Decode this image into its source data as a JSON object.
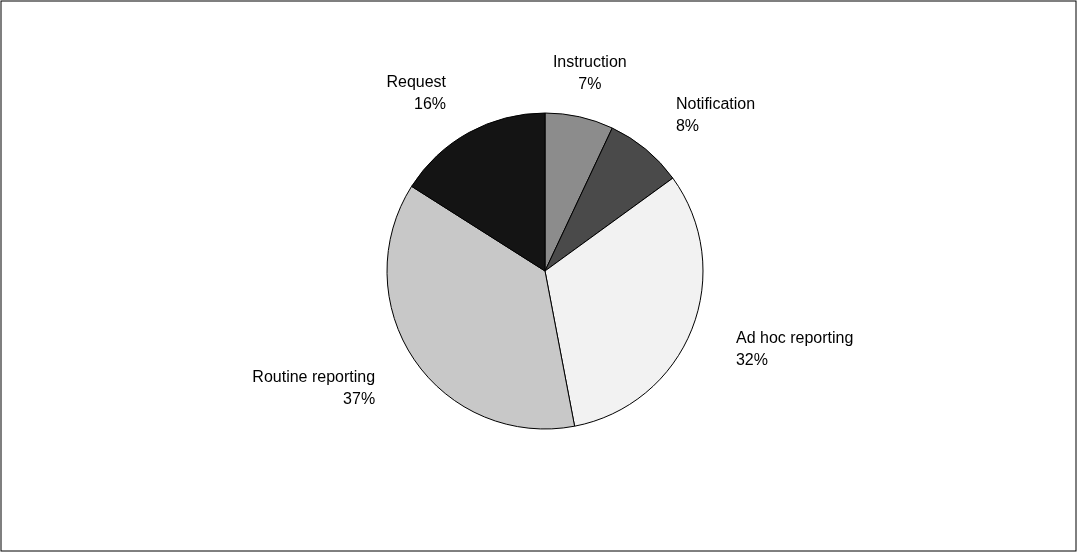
{
  "chart_data": {
    "type": "pie",
    "categories": [
      "Instruction",
      "Notification",
      "Ad hoc reporting",
      "Routine reporting",
      "Request"
    ],
    "values": [
      7,
      8,
      32,
      37,
      16
    ],
    "value_labels": [
      "7%",
      "8%",
      "32%",
      "37%",
      "16%"
    ],
    "colors": [
      "#8c8c8c",
      "#4a4a4a",
      "#f2f2f2",
      "#c8c8c8",
      "#141414"
    ]
  }
}
